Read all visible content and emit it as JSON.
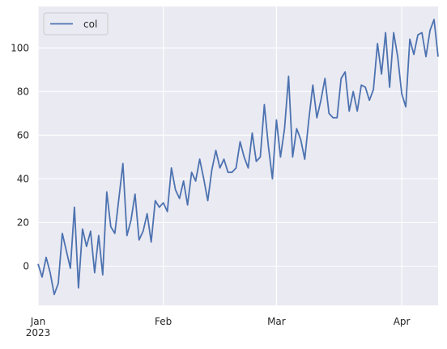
{
  "chart_data": {
    "type": "line",
    "title": "",
    "xlabel": "",
    "ylabel": "",
    "grid": true,
    "legend_position": "upper-left",
    "background_color": "#eaeaf2",
    "grid_color": "#ffffff",
    "series_color": "#4c72b0",
    "x_start": "2023-01-01",
    "x_end": "2023-04-10",
    "x": [
      "2023-01-01",
      "2023-01-02",
      "2023-01-03",
      "2023-01-04",
      "2023-01-05",
      "2023-01-06",
      "2023-01-07",
      "2023-01-08",
      "2023-01-09",
      "2023-01-10",
      "2023-01-11",
      "2023-01-12",
      "2023-01-13",
      "2023-01-14",
      "2023-01-15",
      "2023-01-16",
      "2023-01-17",
      "2023-01-18",
      "2023-01-19",
      "2023-01-20",
      "2023-01-21",
      "2023-01-22",
      "2023-01-23",
      "2023-01-24",
      "2023-01-25",
      "2023-01-26",
      "2023-01-27",
      "2023-01-28",
      "2023-01-29",
      "2023-01-30",
      "2023-01-31",
      "2023-02-01",
      "2023-02-02",
      "2023-02-03",
      "2023-02-04",
      "2023-02-05",
      "2023-02-06",
      "2023-02-07",
      "2023-02-08",
      "2023-02-09",
      "2023-02-10",
      "2023-02-11",
      "2023-02-12",
      "2023-02-13",
      "2023-02-14",
      "2023-02-15",
      "2023-02-16",
      "2023-02-17",
      "2023-02-18",
      "2023-02-19",
      "2023-02-20",
      "2023-02-21",
      "2023-02-22",
      "2023-02-23",
      "2023-02-24",
      "2023-02-25",
      "2023-02-26",
      "2023-02-27",
      "2023-02-28",
      "2023-03-01",
      "2023-03-02",
      "2023-03-03",
      "2023-03-04",
      "2023-03-05",
      "2023-03-06",
      "2023-03-07",
      "2023-03-08",
      "2023-03-09",
      "2023-03-10",
      "2023-03-11",
      "2023-03-12",
      "2023-03-13",
      "2023-03-14",
      "2023-03-15",
      "2023-03-16",
      "2023-03-17",
      "2023-03-18",
      "2023-03-19",
      "2023-03-20",
      "2023-03-21",
      "2023-03-22",
      "2023-03-23",
      "2023-03-24",
      "2023-03-25",
      "2023-03-26",
      "2023-03-27",
      "2023-03-28",
      "2023-03-29",
      "2023-03-30",
      "2023-03-31",
      "2023-04-01",
      "2023-04-02",
      "2023-04-03",
      "2023-04-04",
      "2023-04-05",
      "2023-04-06",
      "2023-04-07",
      "2023-04-08",
      "2023-04-09",
      "2023-04-10"
    ],
    "series": [
      {
        "name": "col",
        "values": [
          1,
          -5,
          4,
          -3,
          -13,
          -8,
          15,
          7,
          -1,
          27,
          -10,
          17,
          9,
          16,
          -3,
          14,
          -4,
          34,
          18,
          15,
          31,
          47,
          14,
          21,
          33,
          12,
          16,
          24,
          11,
          30,
          27,
          29,
          25,
          45,
          35,
          31,
          39,
          28,
          43,
          39,
          49,
          40,
          30,
          44,
          53,
          45,
          49,
          43,
          43,
          45,
          57,
          50,
          45,
          61,
          48,
          50,
          74,
          55,
          40,
          67,
          50,
          63,
          87,
          50,
          63,
          58,
          49,
          67,
          83,
          68,
          76,
          86,
          70,
          68,
          68,
          86,
          89,
          71,
          80,
          71,
          83,
          82,
          76,
          81,
          102,
          88,
          107,
          82,
          107,
          96,
          79,
          73,
          104,
          97,
          106,
          107,
          96,
          108,
          113,
          96
        ]
      }
    ],
    "xlim": [
      "2023-01-01",
      "2023-04-10"
    ],
    "ylim": [
      -18,
      119
    ],
    "y_ticks": [
      0,
      20,
      40,
      60,
      80,
      100
    ],
    "y_tick_labels": [
      "0",
      "20",
      "40",
      "60",
      "80",
      "100"
    ],
    "x_ticks": [
      {
        "date": "2023-01-01",
        "label": "Jan",
        "sublabel": "2023"
      },
      {
        "date": "2023-02-01",
        "label": "Feb",
        "sublabel": ""
      },
      {
        "date": "2023-03-01",
        "label": "Mar",
        "sublabel": ""
      },
      {
        "date": "2023-04-01",
        "label": "Apr",
        "sublabel": ""
      }
    ]
  }
}
